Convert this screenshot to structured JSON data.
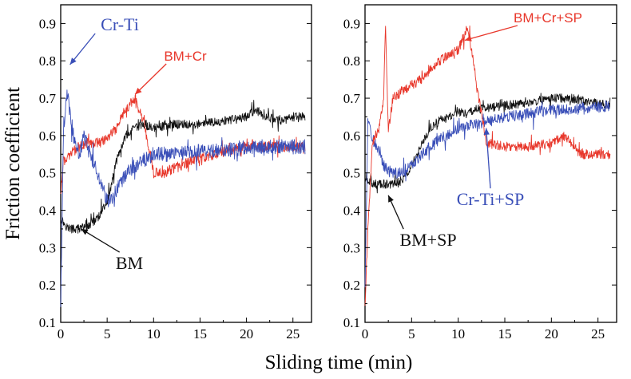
{
  "figure": {
    "xlabel": "Sliding time (min)",
    "ylabel": "Friction coefficient"
  },
  "chart_data": [
    {
      "type": "line",
      "panel": "left",
      "title": "",
      "xlabel": "Sliding time (min)",
      "ylabel": "Friction coefficient",
      "xlim": [
        0,
        27
      ],
      "ylim": [
        0.1,
        0.95
      ],
      "x_ticks": [
        "0",
        "5",
        "10",
        "15",
        "20",
        "25"
      ],
      "y_ticks": [
        "0.1",
        "0.2",
        "0.3",
        "0.4",
        "0.5",
        "0.6",
        "0.7",
        "0.8",
        "0.9"
      ],
      "grid": false,
      "series": [
        {
          "name": "BM",
          "color": "#111111",
          "x": [
            0,
            0.5,
            1,
            2,
            3,
            4,
            5,
            6,
            7,
            8,
            9,
            10,
            12,
            15,
            18,
            20,
            21,
            22,
            24,
            25,
            26.3
          ],
          "y": [
            0.38,
            0.36,
            0.35,
            0.35,
            0.36,
            0.38,
            0.42,
            0.53,
            0.6,
            0.62,
            0.63,
            0.62,
            0.63,
            0.63,
            0.64,
            0.65,
            0.67,
            0.65,
            0.64,
            0.65,
            0.65
          ],
          "noise": 0.012
        },
        {
          "name": "BM+Cr",
          "color": "#e8372b",
          "x": [
            0,
            0.3,
            1,
            2,
            3,
            4,
            5,
            6,
            7,
            8,
            9,
            10,
            11,
            12,
            15,
            18,
            20,
            23,
            26.3
          ],
          "y": [
            0.45,
            0.53,
            0.55,
            0.57,
            0.58,
            0.58,
            0.59,
            0.62,
            0.67,
            0.7,
            0.63,
            0.5,
            0.5,
            0.51,
            0.54,
            0.56,
            0.57,
            0.57,
            0.57
          ],
          "noise": 0.014
        },
        {
          "name": "Cr-Ti",
          "color": "#3a4fb8",
          "x": [
            0,
            0.3,
            0.7,
            1,
            1.5,
            2,
            2.5,
            3,
            4,
            5,
            6,
            7,
            8,
            10,
            12,
            15,
            18,
            20,
            23,
            26.3
          ],
          "y": [
            0.15,
            0.62,
            0.72,
            0.66,
            0.58,
            0.55,
            0.6,
            0.56,
            0.5,
            0.42,
            0.45,
            0.5,
            0.52,
            0.55,
            0.55,
            0.56,
            0.56,
            0.57,
            0.57,
            0.57
          ],
          "noise": 0.02
        }
      ],
      "annotations": [
        {
          "text": "Cr-Ti",
          "color": "#3a4fb8",
          "target": [
            1.0,
            0.79
          ]
        },
        {
          "text": "BM+Cr",
          "color": "#e8372b",
          "target": [
            8.0,
            0.71
          ]
        },
        {
          "text": "BM",
          "color": "#111111",
          "target": [
            2.2,
            0.35
          ]
        }
      ]
    },
    {
      "type": "line",
      "panel": "right",
      "title": "",
      "xlabel": "Sliding time (min)",
      "ylabel": "",
      "xlim": [
        0,
        27
      ],
      "ylim": [
        0.1,
        0.95
      ],
      "x_ticks": [
        "0",
        "5",
        "10",
        "15",
        "20",
        "25"
      ],
      "y_ticks": [
        "0.1",
        "0.2",
        "0.3",
        "0.4",
        "0.5",
        "0.6",
        "0.7",
        "0.8",
        "0.9"
      ],
      "grid": false,
      "series": [
        {
          "name": "BM+SP",
          "color": "#111111",
          "x": [
            0,
            0.5,
            1,
            2,
            3,
            4,
            5,
            6,
            7,
            8,
            10,
            12,
            15,
            18,
            20,
            22,
            24,
            26.3
          ],
          "y": [
            0.48,
            0.48,
            0.47,
            0.47,
            0.47,
            0.48,
            0.52,
            0.57,
            0.62,
            0.64,
            0.66,
            0.67,
            0.68,
            0.69,
            0.7,
            0.7,
            0.69,
            0.68
          ],
          "noise": 0.012
        },
        {
          "name": "Cr-Ti+SP",
          "color": "#3a4fb8",
          "x": [
            0,
            0.3,
            0.7,
            1,
            1.5,
            2,
            3,
            4,
            5,
            6,
            8,
            10,
            12,
            15,
            18,
            20,
            23,
            26.3
          ],
          "y": [
            0.2,
            0.64,
            0.6,
            0.58,
            0.56,
            0.52,
            0.5,
            0.5,
            0.52,
            0.55,
            0.59,
            0.62,
            0.63,
            0.65,
            0.66,
            0.67,
            0.67,
            0.68
          ],
          "noise": 0.015
        },
        {
          "name": "BM+Cr+SP",
          "color": "#e8372b",
          "x": [
            0,
            0.3,
            0.8,
            1.5,
            2.0,
            2.2,
            2.5,
            3,
            4,
            6,
            8,
            10,
            11,
            11.5,
            12,
            12.7,
            13,
            15,
            18,
            20,
            21.5,
            23,
            26.3
          ],
          "y": [
            0.15,
            0.35,
            0.58,
            0.62,
            0.7,
            0.89,
            0.62,
            0.7,
            0.72,
            0.75,
            0.8,
            0.83,
            0.89,
            0.82,
            0.73,
            0.63,
            0.58,
            0.57,
            0.57,
            0.58,
            0.6,
            0.55,
            0.55
          ],
          "noise": 0.013
        }
      ],
      "annotations": [
        {
          "text": "BM+Cr+SP",
          "color": "#e8372b",
          "target": [
            10.7,
            0.855
          ]
        },
        {
          "text": "Cr-Ti+SP",
          "color": "#3a4fb8",
          "target": [
            13.0,
            0.62
          ]
        },
        {
          "text": "BM+SP",
          "color": "#111111",
          "target": [
            2.5,
            0.44
          ]
        }
      ]
    }
  ]
}
